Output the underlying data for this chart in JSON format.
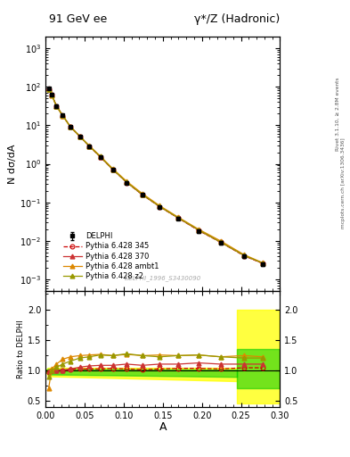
{
  "title_left": "91 GeV ee",
  "title_right": "γ*/Z (Hadronic)",
  "ylabel_main": "N dσ/dA",
  "ylabel_ratio": "Ratio to DELPHI",
  "xlabel": "A",
  "right_label_top": "Rivet 3.1.10, ≥ 2.8M events",
  "right_label_bottom": "mcplots.cern.ch [arXiv:1306.3436]",
  "watermark": "DELPHI_1996_S3430090",
  "data_x": [
    0.004,
    0.008,
    0.014,
    0.022,
    0.032,
    0.044,
    0.056,
    0.07,
    0.086,
    0.104,
    0.124,
    0.146,
    0.17,
    0.196,
    0.224,
    0.254,
    0.278
  ],
  "data_y": [
    90.0,
    62.0,
    32.0,
    18.0,
    9.0,
    5.0,
    2.8,
    1.5,
    0.7,
    0.32,
    0.155,
    0.075,
    0.038,
    0.018,
    0.009,
    0.004,
    0.0025
  ],
  "data_yerr": [
    5.0,
    3.5,
    2.0,
    1.0,
    0.6,
    0.3,
    0.18,
    0.1,
    0.05,
    0.025,
    0.012,
    0.006,
    0.003,
    0.0015,
    0.0008,
    0.0004,
    0.00025
  ],
  "py345_x": [
    0.004,
    0.008,
    0.014,
    0.022,
    0.032,
    0.044,
    0.056,
    0.07,
    0.086,
    0.104,
    0.124,
    0.146,
    0.17,
    0.196,
    0.224,
    0.254,
    0.278
  ],
  "py345_y": [
    88.0,
    61.0,
    31.5,
    17.8,
    9.1,
    5.1,
    2.85,
    1.52,
    0.72,
    0.325,
    0.157,
    0.077,
    0.039,
    0.0185,
    0.0092,
    0.0041,
    0.0026
  ],
  "py345_ratio": [
    0.97,
    0.99,
    1.0,
    0.99,
    1.01,
    1.02,
    1.02,
    1.02,
    1.03,
    1.02,
    1.01,
    1.02,
    1.03,
    1.03,
    1.02,
    1.04,
    1.04
  ],
  "py370_x": [
    0.004,
    0.008,
    0.014,
    0.022,
    0.032,
    0.044,
    0.056,
    0.07,
    0.086,
    0.104,
    0.124,
    0.146,
    0.17,
    0.196,
    0.224,
    0.254,
    0.278
  ],
  "py370_y": [
    89.0,
    62.0,
    32.0,
    18.0,
    9.1,
    5.1,
    2.86,
    1.53,
    0.71,
    0.33,
    0.158,
    0.078,
    0.039,
    0.019,
    0.0093,
    0.0042,
    0.0026
  ],
  "py370_ratio": [
    0.98,
    1.0,
    1.0,
    1.0,
    1.02,
    1.05,
    1.07,
    1.08,
    1.08,
    1.1,
    1.08,
    1.1,
    1.1,
    1.12,
    1.1,
    1.1,
    1.1
  ],
  "pyambt1_x": [
    0.004,
    0.008,
    0.014,
    0.022,
    0.032,
    0.044,
    0.056,
    0.07,
    0.086,
    0.104,
    0.124,
    0.146,
    0.17,
    0.196,
    0.224,
    0.254,
    0.278
  ],
  "pyambt1_y": [
    85.0,
    60.0,
    31.0,
    17.5,
    9.0,
    5.2,
    2.95,
    1.6,
    0.75,
    0.35,
    0.168,
    0.082,
    0.041,
    0.02,
    0.01,
    0.0044,
    0.0027
  ],
  "pyambt1_ratio": [
    0.7,
    1.02,
    1.1,
    1.18,
    1.22,
    1.24,
    1.25,
    1.26,
    1.24,
    1.26,
    1.24,
    1.25,
    1.24,
    1.25,
    1.22,
    1.24,
    1.22
  ],
  "pyz2_x": [
    0.004,
    0.008,
    0.014,
    0.022,
    0.032,
    0.044,
    0.056,
    0.07,
    0.086,
    0.104,
    0.124,
    0.146,
    0.17,
    0.196,
    0.224,
    0.254,
    0.278
  ],
  "pyz2_y": [
    87.0,
    61.0,
    31.5,
    17.9,
    9.1,
    5.15,
    2.88,
    1.54,
    0.72,
    0.33,
    0.159,
    0.078,
    0.0395,
    0.0191,
    0.0093,
    0.0042,
    0.00265
  ],
  "pyz2_ratio": [
    0.9,
    1.0,
    1.05,
    1.1,
    1.15,
    1.2,
    1.22,
    1.25,
    1.24,
    1.27,
    1.24,
    1.22,
    1.24,
    1.25,
    1.22,
    1.2,
    1.2
  ],
  "color_data": "#000000",
  "color_py345": "#cc0000",
  "color_py370": "#cc3333",
  "color_pyambt1": "#dd8800",
  "color_pyz2": "#999900",
  "xlim": [
    0.0,
    0.3
  ],
  "ylim_main": [
    0.0005,
    2000
  ],
  "ylim_ratio": [
    0.4,
    2.3
  ],
  "ratio_yticks": [
    0.5,
    1.0,
    1.5,
    2.0
  ]
}
